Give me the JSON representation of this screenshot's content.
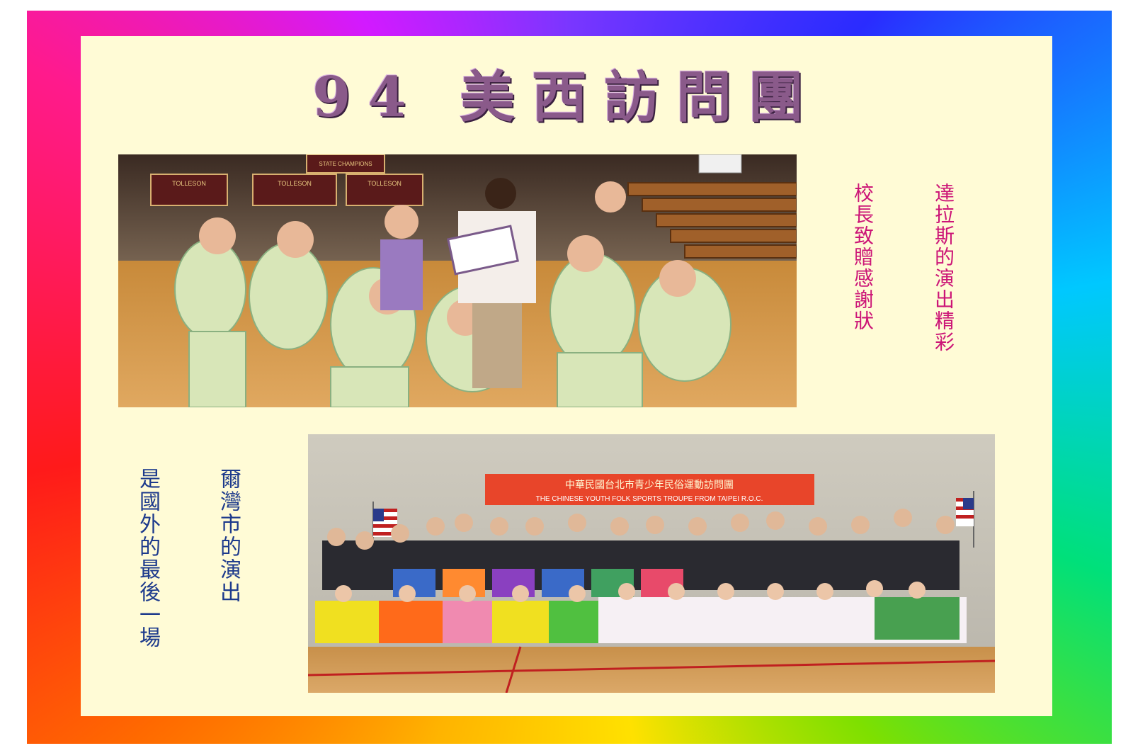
{
  "title": "94 美西訪問團",
  "captions": {
    "dallas_col1": "達拉斯的演出精彩",
    "dallas_col2": "校長致贈感謝狀",
    "irving_col1": "爾灣市的演出",
    "irving_col2": "是國外的最後一場"
  },
  "photo1": {
    "banner_1": "TOLLESON",
    "banner_2": "TOLLESON",
    "banner_3": "TOLLESON",
    "state_banner": "STATE CHAMPIONS"
  },
  "photo2": {
    "banner_cn": "中華民國台北市青少年民俗運動訪問團",
    "banner_en": "THE CHINESE YOUTH FOLK SPORTS TROUPE FROM TAIPEI R.O.C."
  },
  "colors": {
    "panel": "#fffbd6",
    "pink_caption": "#cc1577",
    "blue_caption": "#1d3a8c",
    "banner_red": "#e8452a"
  },
  "icons": [
    "rainbow-border",
    "us-flag-icon"
  ]
}
